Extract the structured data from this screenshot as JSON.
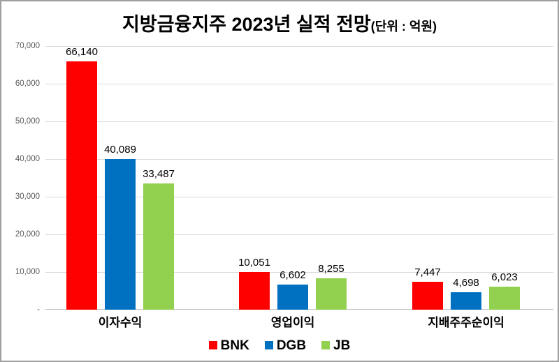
{
  "title": "지방금융지주 2023년 실적 전망",
  "title_unit": "(단위 : 억원)",
  "colors": {
    "bnk_red": "#ff0000",
    "dgb_blue": "#0070c0",
    "jb_green": "#92d050",
    "gridline": "#d9d9d9",
    "axis_line": "#bfbfbf",
    "tick_text": "#595959",
    "border": "#9e9e9e"
  },
  "chart_data": {
    "type": "bar",
    "title": "지방금융지주 2023년 실적 전망 (단위 : 억원)",
    "categories": [
      "이자수익",
      "영업이익",
      "지배주주순이익"
    ],
    "series": [
      {
        "name": "BNK",
        "color": "#ff0000",
        "values": [
          66140,
          10051,
          7447
        ],
        "labels": [
          "66,140",
          "10,051",
          "7,447"
        ]
      },
      {
        "name": "DGB",
        "color": "#0070c0",
        "values": [
          40089,
          6602,
          4698
        ],
        "labels": [
          "40,089",
          "6,602",
          "4,698"
        ]
      },
      {
        "name": "JB",
        "color": "#92d050",
        "values": [
          33487,
          8255,
          6023
        ],
        "labels": [
          "33,487",
          "8,255",
          "6,023"
        ]
      }
    ],
    "xlabel": "",
    "ylabel": "",
    "ylim": [
      0,
      70000
    ],
    "ytick_step": 10000,
    "ytick_labels": [
      "-",
      "10,000",
      "20,000",
      "30,000",
      "40,000",
      "50,000",
      "60,000",
      "70,000"
    ],
    "grid": true,
    "legend_position": "bottom"
  }
}
